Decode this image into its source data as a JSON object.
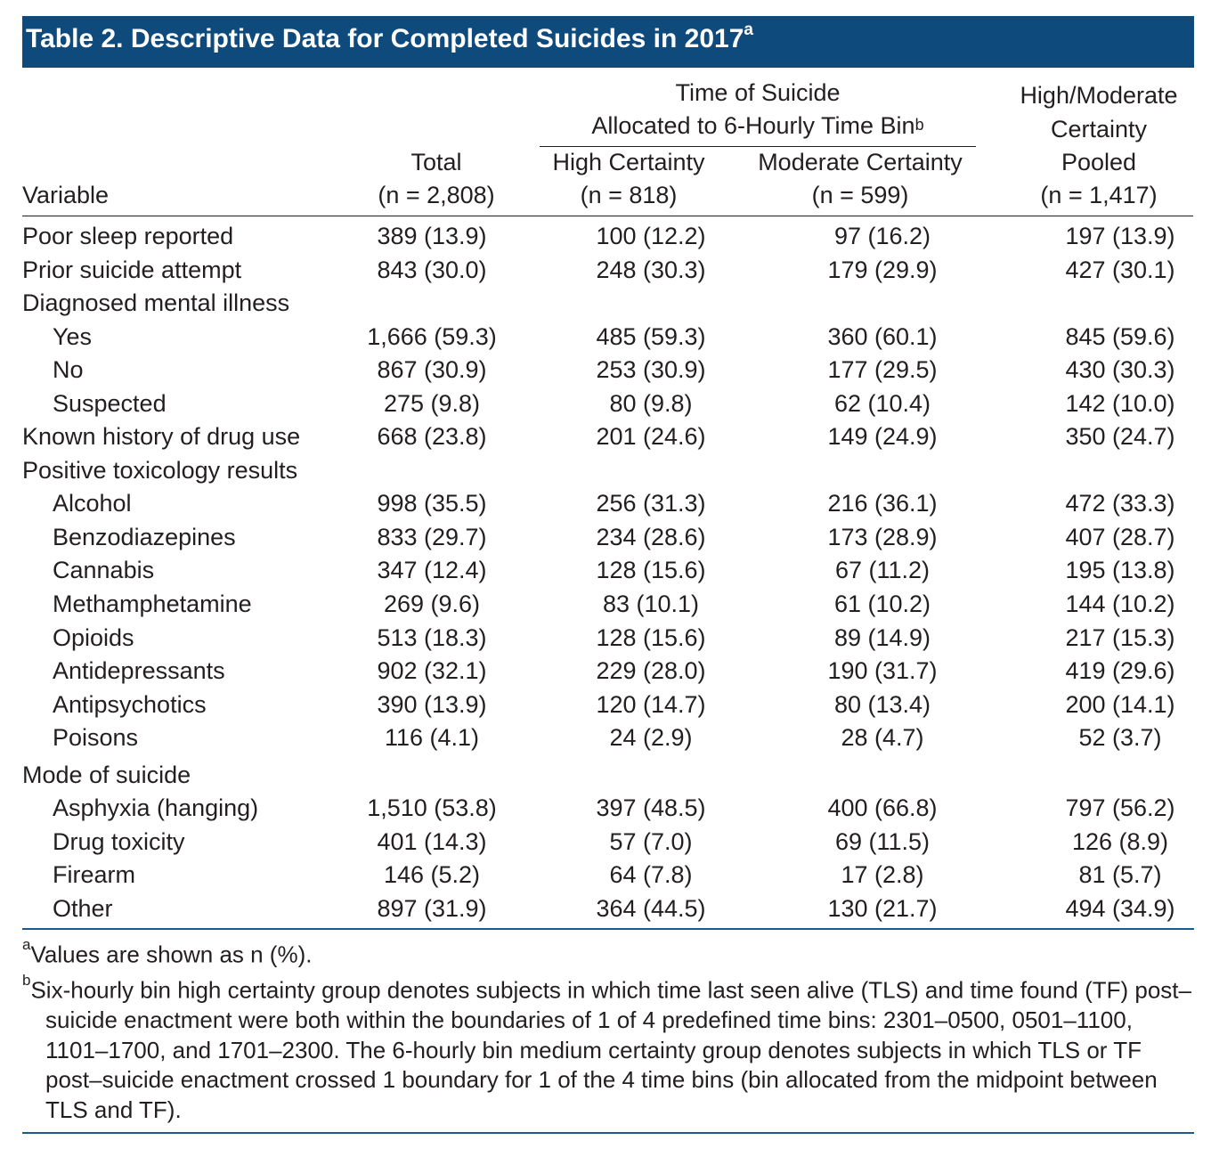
{
  "title": {
    "text": "Table 2. Descriptive Data for Completed Suicides in 2017",
    "sup": "a"
  },
  "header": {
    "variable": "Variable",
    "total": {
      "label": "Total",
      "n": "(n = 2,808)"
    },
    "group_line1": "Time of Suicide",
    "group_line2": "Allocated to 6-Hourly Time Bin",
    "group_sup": "b",
    "high": {
      "label": "High Certainty",
      "n": "(n = 818)"
    },
    "moderate": {
      "label": "Moderate Certainty",
      "n": "(n = 599)"
    },
    "pooled": {
      "line1": "High/Moderate",
      "line2": "Certainty",
      "line3": "Pooled",
      "n": "(n = 1,417)"
    }
  },
  "rows": [
    {
      "label": "Poor sleep reported",
      "indent": false,
      "total": "389 (13.9)",
      "high": "100 (12.2)",
      "moderate": "97 (16.2)",
      "pooled": "197 (13.9)"
    },
    {
      "label": "Prior suicide attempt",
      "indent": false,
      "total": "843 (30.0)",
      "high": "248 (30.3)",
      "moderate": "179 (29.9)",
      "pooled": "427 (30.1)"
    },
    {
      "label": "Diagnosed mental illness",
      "indent": false,
      "total": "",
      "high": "",
      "moderate": "",
      "pooled": ""
    },
    {
      "label": "Yes",
      "indent": true,
      "total": "1,666 (59.3)",
      "high": "485 (59.3)",
      "moderate": "360 (60.1)",
      "pooled": "845 (59.6)"
    },
    {
      "label": "No",
      "indent": true,
      "total": "867 (30.9)",
      "high": "253 (30.9)",
      "moderate": "177 (29.5)",
      "pooled": "430 (30.3)"
    },
    {
      "label": "Suspected",
      "indent": true,
      "total": "275 (9.8)",
      "high": "80 (9.8)",
      "moderate": "62 (10.4)",
      "pooled": "142 (10.0)"
    },
    {
      "label": "Known history of drug use",
      "indent": false,
      "total": "668 (23.8)",
      "high": "201 (24.6)",
      "moderate": "149 (24.9)",
      "pooled": "350 (24.7)"
    },
    {
      "label": "Positive toxicology results",
      "indent": false,
      "total": "",
      "high": "",
      "moderate": "",
      "pooled": ""
    },
    {
      "label": "Alcohol",
      "indent": true,
      "total": "998 (35.5)",
      "high": "256 (31.3)",
      "moderate": "216 (36.1)",
      "pooled": "472 (33.3)"
    },
    {
      "label": "Benzodiazepines",
      "indent": true,
      "total": "833 (29.7)",
      "high": "234 (28.6)",
      "moderate": "173 (28.9)",
      "pooled": "407 (28.7)"
    },
    {
      "label": "Cannabis",
      "indent": true,
      "total": "347 (12.4)",
      "high": "128 (15.6)",
      "moderate": "67 (11.2)",
      "pooled": "195 (13.8)"
    },
    {
      "label": "Methamphetamine",
      "indent": true,
      "total": "269 (9.6)",
      "high": "83 (10.1)",
      "moderate": "61 (10.2)",
      "pooled": "144 (10.2)"
    },
    {
      "label": "Opioids",
      "indent": true,
      "total": "513 (18.3)",
      "high": "128 (15.6)",
      "moderate": "89 (14.9)",
      "pooled": "217 (15.3)"
    },
    {
      "label": "Antidepressants",
      "indent": true,
      "total": "902 (32.1)",
      "high": "229 (28.0)",
      "moderate": "190 (31.7)",
      "pooled": "419 (29.6)"
    },
    {
      "label": "Antipsychotics",
      "indent": true,
      "total": "390 (13.9)",
      "high": "120 (14.7)",
      "moderate": "80 (13.4)",
      "pooled": "200 (14.1)"
    },
    {
      "label": "Poisons",
      "indent": true,
      "total": "116 (4.1)",
      "high": "24 (2.9)",
      "moderate": "28 (4.7)",
      "pooled": "52 (3.7)"
    },
    {
      "label": "Mode of suicide",
      "indent": false,
      "gap": true,
      "total": "",
      "high": "",
      "moderate": "",
      "pooled": ""
    },
    {
      "label": "Asphyxia (hanging)",
      "indent": true,
      "total": "1,510 (53.8)",
      "high": "397 (48.5)",
      "moderate": "400 (66.8)",
      "pooled": "797 (56.2)"
    },
    {
      "label": "Drug toxicity",
      "indent": true,
      "total": "401 (14.3)",
      "high": "57 (7.0)",
      "moderate": "69 (11.5)",
      "pooled": "126 (8.9)"
    },
    {
      "label": "Firearm",
      "indent": true,
      "total": "146 (5.2)",
      "high": "64 (7.8)",
      "moderate": "17 (2.8)",
      "pooled": "81 (5.7)"
    },
    {
      "label": "Other",
      "indent": true,
      "total": "897 (31.9)",
      "high": "364 (44.5)",
      "moderate": "130 (21.7)",
      "pooled": "494 (34.9)"
    }
  ],
  "footnotes": [
    {
      "mark": "a",
      "text": "Values are shown as n (%)."
    },
    {
      "mark": "b",
      "text": "Six-hourly bin high certainty group denotes subjects in which time last seen alive (TLS) and time found (TF) post–suicide enactment were both within the boundaries of 1 of 4 predefined time bins: 2301–0500, 0501–1100, 1101–1700, and 1701–2300. The 6-hourly bin medium certainty group denotes subjects in which TLS or TF post–suicide enactment crossed 1 boundary for 1 of the 4 time bins (bin allocated from the midpoint between TLS and TF)."
    }
  ]
}
